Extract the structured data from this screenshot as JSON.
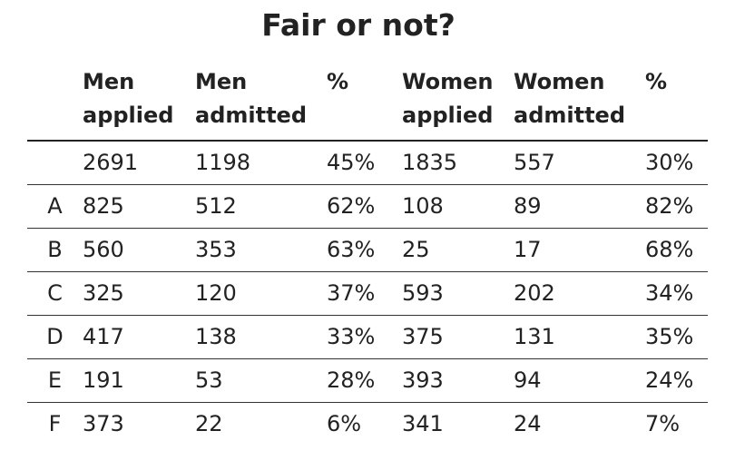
{
  "title": "Fair or not?",
  "columns": [
    {
      "line1": "",
      "line2": ""
    },
    {
      "line1": "Men",
      "line2": "applied"
    },
    {
      "line1": "Men",
      "line2": "admitted"
    },
    {
      "line1": "%",
      "line2": ""
    },
    {
      "line1": "Women",
      "line2": "applied"
    },
    {
      "line1": "Women",
      "line2": "admitted"
    },
    {
      "line1": "%",
      "line2": ""
    }
  ],
  "rows": [
    [
      "",
      "2691",
      "1198",
      "45%",
      "1835",
      "557",
      "30%"
    ],
    [
      "A",
      "825",
      "512",
      "62%",
      "108",
      "89",
      "82%"
    ],
    [
      "B",
      "560",
      "353",
      "63%",
      "25",
      "17",
      "68%"
    ],
    [
      "C",
      "325",
      "120",
      "37%",
      "593",
      "202",
      "34%"
    ],
    [
      "D",
      "417",
      "138",
      "33%",
      "375",
      "131",
      "35%"
    ],
    [
      "E",
      "191",
      "53",
      "28%",
      "393",
      "94",
      "24%"
    ],
    [
      "F",
      "373",
      "22",
      "6%",
      "341",
      "24",
      "7%"
    ]
  ]
}
